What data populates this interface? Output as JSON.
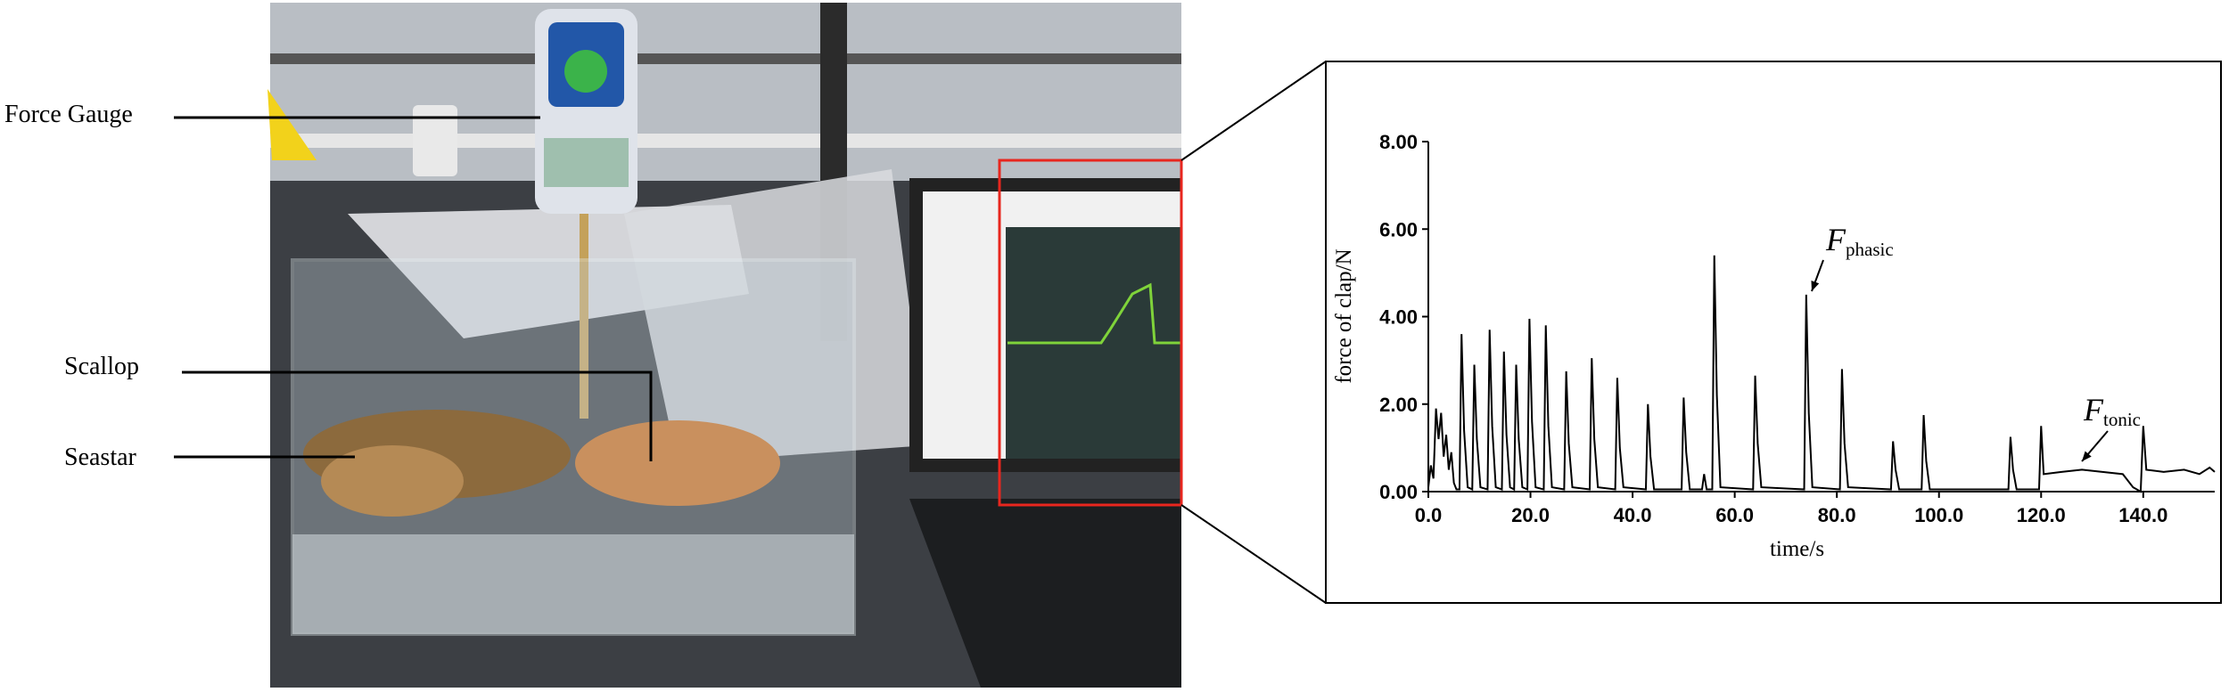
{
  "photo_labels": [
    "Force Gauge",
    "Scallop",
    "Seastar"
  ],
  "chart_data": {
    "type": "line",
    "color": "#000000",
    "xlabel": "time/s",
    "ylabel": "force of clap/N",
    "annotations": [
      {
        "text": "F",
        "subscript": "phasic"
      },
      {
        "text": "F",
        "subscript": "tonic"
      }
    ],
    "xlim": [
      0,
      154
    ],
    "ylim": [
      0,
      8
    ],
    "xticks": [
      {
        "value": 0,
        "label": "0.0"
      },
      {
        "value": 20,
        "label": "20.0"
      },
      {
        "value": 40,
        "label": "40.0"
      },
      {
        "value": 60,
        "label": "60.0"
      },
      {
        "value": 80,
        "label": "80.0"
      },
      {
        "value": 100,
        "label": "100.0"
      },
      {
        "value": 120,
        "label": "120.0"
      },
      {
        "value": 140,
        "label": "140.0"
      }
    ],
    "yticks": [
      {
        "value": 0,
        "label": "0.00"
      },
      {
        "value": 2,
        "label": "2.00"
      },
      {
        "value": 4,
        "label": "4.00"
      },
      {
        "value": 6,
        "label": "6.00"
      },
      {
        "value": 8,
        "label": "8.00"
      }
    ],
    "x": [
      0,
      0.5,
      1,
      1.5,
      2,
      2.5,
      3,
      3.5,
      4,
      4.5,
      5,
      5.5,
      6.1,
      6.5,
      7,
      7.7,
      8.6,
      9,
      9.5,
      10.2,
      11.6,
      12,
      12.5,
      13.2,
      14.4,
      14.8,
      15.3,
      16,
      16.8,
      17.2,
      17.7,
      18.4,
      19.4,
      19.8,
      20.3,
      21,
      22.6,
      23,
      23.5,
      24.2,
      26.6,
      27,
      27.5,
      28.2,
      31.6,
      32,
      32.5,
      33.2,
      36.6,
      37,
      37.5,
      38.2,
      42.6,
      43,
      43.5,
      44.2,
      49.6,
      50,
      50.5,
      51.2,
      53.6,
      54,
      54.5,
      55.6,
      56,
      56.5,
      57.2,
      63.6,
      64,
      64.5,
      65.2,
      73.6,
      74,
      74.5,
      75.2,
      80.6,
      81,
      81.5,
      82.2,
      90.6,
      91,
      91.5,
      92.2,
      96.6,
      97,
      97.5,
      98.2,
      113.6,
      114,
      114.5,
      115.2,
      119.6,
      120,
      120.5,
      124,
      128,
      132,
      136,
      138,
      139.5,
      140,
      140.6,
      144,
      148,
      151,
      153,
      154
    ],
    "values": [
      0.1,
      0.6,
      0.3,
      1.9,
      1.2,
      1.8,
      0.8,
      1.3,
      0.5,
      0.9,
      0.2,
      0.05,
      0.05,
      3.6,
      1.4,
      0.1,
      0.05,
      2.9,
      1.2,
      0.1,
      0.05,
      3.7,
      1.5,
      0.1,
      0.05,
      3.2,
      1.3,
      0.1,
      0.05,
      2.9,
      1.2,
      0.1,
      0.05,
      3.95,
      1.6,
      0.1,
      0.05,
      3.8,
      1.5,
      0.1,
      0.05,
      2.75,
      1.1,
      0.1,
      0.05,
      3.05,
      1.2,
      0.1,
      0.05,
      2.6,
      1.0,
      0.1,
      0.05,
      2.0,
      0.8,
      0.05,
      0.05,
      2.15,
      0.9,
      0.05,
      0.05,
      0.4,
      0.05,
      0.05,
      5.4,
      2.2,
      0.1,
      0.05,
      2.65,
      1.1,
      0.1,
      0.05,
      4.5,
      1.8,
      0.1,
      0.05,
      2.8,
      1.1,
      0.1,
      0.05,
      1.15,
      0.5,
      0.05,
      0.05,
      1.75,
      0.7,
      0.05,
      0.05,
      1.25,
      0.5,
      0.05,
      0.05,
      1.5,
      0.4,
      0.45,
      0.5,
      0.45,
      0.4,
      0.1,
      0,
      1.5,
      0.5,
      0.45,
      0.5,
      0.4,
      0.55,
      0.45
    ]
  }
}
